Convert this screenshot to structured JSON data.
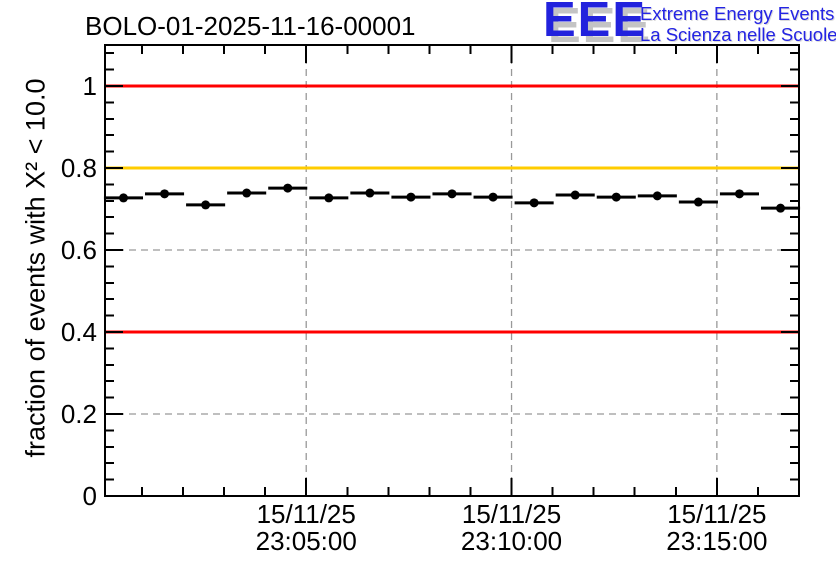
{
  "page": {
    "title": "BOLO-01-2025-11-16-00001"
  },
  "logo": {
    "acronym": "EEE",
    "line1": "Extreme Energy Events",
    "line2": "La Scienza nelle Scuole",
    "color": "#2222dd",
    "shadow_color": "#c4c4c4"
  },
  "chart_data": {
    "type": "scatter",
    "title": "BOLO-01-2025-11-16-00001",
    "xlabel": "",
    "ylabel": "fraction of events with X² < 10.0",
    "ylim": [
      0,
      1.1
    ],
    "xlim_minutes": [
      0.1,
      17.0
    ],
    "x_reference": "minutes after 15/11/25 23:00:00",
    "grid": true,
    "grid_color": "#999999",
    "axis_color": "#000000",
    "y_major_ticks": [
      0,
      0.2,
      0.4,
      0.6,
      0.8,
      1.0
    ],
    "y_tick_labels": [
      "0",
      "0.2",
      "0.4",
      "0.6",
      "0.8",
      "1"
    ],
    "y_minor_step": 0.04,
    "x_minor_step": 1,
    "x_major_ticks": [
      {
        "x": 5,
        "label_line1": "15/11/25",
        "label_line2": "23:05:00"
      },
      {
        "x": 10,
        "label_line1": "15/11/25",
        "label_line2": "23:10:00"
      },
      {
        "x": 15,
        "label_line1": "15/11/25",
        "label_line2": "23:15:00"
      }
    ],
    "reference_lines": [
      {
        "y": 1.0,
        "color": "#ff0000",
        "name": "upper-limit-line"
      },
      {
        "y": 0.8,
        "color": "#ffcc00",
        "name": "warning-line"
      },
      {
        "y": 0.4,
        "color": "#ff0000",
        "name": "lower-limit-line"
      }
    ],
    "series": [
      {
        "name": "chi2-fraction",
        "marker": "filled-circle",
        "color": "#000000",
        "x_error_minutes": 0.5,
        "points": [
          {
            "x": 0.55,
            "y": 0.727
          },
          {
            "x": 1.55,
            "y": 0.737
          },
          {
            "x": 2.55,
            "y": 0.71
          },
          {
            "x": 3.55,
            "y": 0.739
          },
          {
            "x": 4.55,
            "y": 0.751
          },
          {
            "x": 5.55,
            "y": 0.727
          },
          {
            "x": 6.55,
            "y": 0.739
          },
          {
            "x": 7.55,
            "y": 0.729
          },
          {
            "x": 8.55,
            "y": 0.737
          },
          {
            "x": 9.55,
            "y": 0.729
          },
          {
            "x": 10.55,
            "y": 0.715
          },
          {
            "x": 11.55,
            "y": 0.734
          },
          {
            "x": 12.55,
            "y": 0.729
          },
          {
            "x": 13.55,
            "y": 0.732
          },
          {
            "x": 14.55,
            "y": 0.717
          },
          {
            "x": 15.55,
            "y": 0.737
          },
          {
            "x": 16.55,
            "y": 0.702
          }
        ]
      }
    ]
  }
}
